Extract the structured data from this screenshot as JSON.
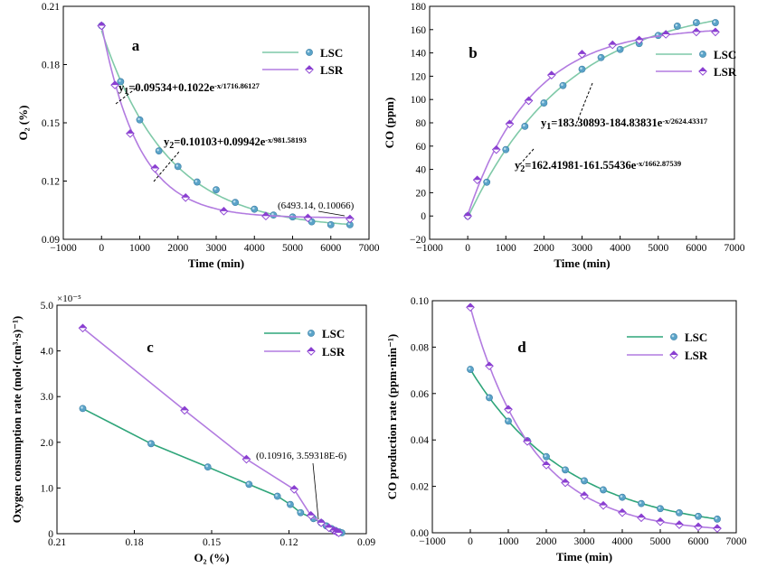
{
  "colors": {
    "lsc_line": "#7fc9a8",
    "lsr_line": "#b27be0",
    "lsc_marker": "#5aa3c8",
    "lsr_marker": "#8a3fd1",
    "lsc_line_c": "#2fa57a"
  },
  "chart_data": [
    {
      "id": "a",
      "type": "line",
      "panel_label": "a",
      "xlabel": "Time (min)",
      "ylabel": "O₂ (%)",
      "xlim": [
        -1000,
        7000
      ],
      "ylim": [
        0.09,
        0.21
      ],
      "xticks": [
        -1000,
        0,
        1000,
        2000,
        3000,
        4000,
        5000,
        6000,
        7000
      ],
      "xtick_labels": [
        "−1000",
        "0",
        "1000",
        "2000",
        "3000",
        "4000",
        "5000",
        "6000",
        "7000"
      ],
      "yticks": [
        0.09,
        0.12,
        0.15,
        0.18,
        0.21
      ],
      "ytick_labels": [
        "0.09",
        "0.12",
        "0.15",
        "0.18",
        "0.21"
      ],
      "series": [
        {
          "name": "LSC",
          "fit": {
            "a": 0.09534,
            "b": 0.1022,
            "t": 1716.86127,
            "sign": 1
          },
          "x": [
            0,
            500,
            1000,
            1500,
            2000,
            2500,
            3000,
            3500,
            4000,
            4500,
            5000,
            5500,
            6000,
            6500
          ],
          "y": [
            0.2,
            0.1712,
            0.1515,
            0.1355,
            0.1275,
            0.1195,
            0.1155,
            0.109,
            0.1055,
            0.1025,
            0.1015,
            0.099,
            0.0975,
            0.0975
          ]
        },
        {
          "name": "LSR",
          "fit": {
            "a": 0.10103,
            "b": 0.09942,
            "t": 981.58193,
            "sign": 1
          },
          "x": [
            0,
            350,
            750,
            1400,
            2200,
            3200,
            4300,
            5400,
            6500
          ],
          "y": [
            0.2,
            0.1695,
            0.1445,
            0.1265,
            0.1115,
            0.1045,
            0.102,
            0.101,
            0.1005
          ]
        }
      ],
      "equations": [
        {
          "pre": "y",
          "sub": "1",
          "mid": "=0.09534+0.1022e",
          "sup": "-x/1716.86127"
        },
        {
          "pre": "y",
          "sub": "2",
          "mid": "=0.10103+0.09942e",
          "sup": "-x/981.58193"
        }
      ],
      "annotations": [
        "(6493.14, 0.10066)"
      ],
      "legend": [
        "LSC",
        "LSR"
      ],
      "legend_position": "top-right"
    },
    {
      "id": "b",
      "type": "line",
      "panel_label": "b",
      "xlabel": "Time (min)",
      "ylabel": "CO (ppm)",
      "xlim": [
        -1000,
        7000
      ],
      "ylim": [
        -20,
        180
      ],
      "xticks": [
        -1000,
        0,
        1000,
        2000,
        3000,
        4000,
        5000,
        6000,
        7000
      ],
      "xtick_labels": [
        "−1000",
        "0",
        "1000",
        "2000",
        "3000",
        "4000",
        "5000",
        "6000",
        "7000"
      ],
      "yticks": [
        -20,
        0,
        20,
        40,
        60,
        80,
        100,
        120,
        140,
        160,
        180
      ],
      "ytick_labels": [
        "−20",
        "0",
        "20",
        "40",
        "60",
        "80",
        "100",
        "120",
        "140",
        "160",
        "180"
      ],
      "series": [
        {
          "name": "LSC",
          "fit": {
            "a": 183.30893,
            "b": 184.83831,
            "t": 2624.43317,
            "sign": -1
          },
          "x": [
            0,
            500,
            1000,
            1500,
            2000,
            2500,
            3000,
            3500,
            4000,
            4500,
            5000,
            5500,
            6000,
            6500
          ],
          "y": [
            0,
            29,
            57,
            77,
            97,
            112,
            126,
            136,
            143,
            148,
            155,
            163,
            166,
            166
          ]
        },
        {
          "name": "LSR",
          "fit": {
            "a": 162.41981,
            "b": 161.55436,
            "t": 1662.87539,
            "sign": -1
          },
          "x": [
            0,
            250,
            750,
            1100,
            1600,
            2200,
            3000,
            3800,
            4500,
            5200,
            6000,
            6500
          ],
          "y": [
            0,
            31,
            57,
            79,
            99,
            121,
            139,
            147,
            151,
            156,
            158,
            158
          ]
        }
      ],
      "equations": [
        {
          "pre": "y",
          "sub": "1",
          "mid": "=183.30893-184.83831e",
          "sup": "-x/2624.43317"
        },
        {
          "pre": "y",
          "sub": "2",
          "mid": "=162.41981-161.55436e",
          "sup": "-x/1662.87539"
        }
      ],
      "legend": [
        "LSC",
        "LSR"
      ],
      "legend_position": "right"
    },
    {
      "id": "c",
      "type": "line",
      "panel_label": "c",
      "xlabel": "O₂ (%)",
      "ylabel": "Oxygen consumption rate (mol·(cm³·s)⁻¹)",
      "x_reversed": true,
      "xlim": [
        0.21,
        0.09
      ],
      "ylim": [
        0,
        5.0
      ],
      "y_multiplier": "×10⁻⁵",
      "xticks": [
        0.21,
        0.18,
        0.15,
        0.12,
        0.09
      ],
      "xtick_labels": [
        "0.21",
        "0.18",
        "0.15",
        "0.12",
        "0.09"
      ],
      "yticks": [
        0,
        1.0,
        2.0,
        3.0,
        4.0,
        5.0
      ],
      "ytick_labels": [
        "0",
        "1.0",
        "2.0",
        "3.0",
        "4.0",
        "5.0"
      ],
      "series": [
        {
          "name": "LSC",
          "x": [
            0.2,
            0.1735,
            0.1515,
            0.1355,
            0.1245,
            0.1195,
            0.1155,
            0.1105,
            0.1075,
            0.1055,
            0.1035,
            0.102,
            0.1005,
            0.0995
          ],
          "y": [
            2.74,
            1.97,
            1.46,
            1.08,
            0.82,
            0.64,
            0.46,
            0.33,
            0.24,
            0.17,
            0.11,
            0.07,
            0.04,
            0.02
          ]
        },
        {
          "name": "LSR",
          "x": [
            0.2,
            0.1605,
            0.1365,
            0.118,
            0.1115,
            0.1075,
            0.1045,
            0.1025,
            0.1015,
            0.1007
          ],
          "y": [
            4.5,
            2.7,
            1.63,
            0.97,
            0.4,
            0.24,
            0.13,
            0.07,
            0.04,
            0.02
          ]
        }
      ],
      "annotations": [
        "(0.10916, 3.59318E-6)"
      ],
      "legend": [
        "LSC",
        "LSR"
      ],
      "legend_position": "top-right"
    },
    {
      "id": "d",
      "type": "line",
      "panel_label": "d",
      "xlabel": "Time (min)",
      "ylabel": "CO production rate (ppm·min⁻¹)",
      "xlim": [
        -1000,
        7000
      ],
      "ylim": [
        0,
        0.1
      ],
      "xticks": [
        -1000,
        0,
        1000,
        2000,
        3000,
        4000,
        5000,
        6000,
        7000
      ],
      "xtick_labels": [
        "−1000",
        "0",
        "1000",
        "2000",
        "3000",
        "4000",
        "5000",
        "6000",
        "7000"
      ],
      "yticks": [
        0,
        0.02,
        0.04,
        0.06,
        0.08,
        0.1
      ],
      "ytick_labels": [
        "0.00",
        "0.02",
        "0.04",
        "0.06",
        "0.08",
        "0.10"
      ],
      "series": [
        {
          "name": "LSC",
          "fit": {
            "a": 0,
            "b": 0.07043,
            "t": 2624.43317,
            "sign": 1
          },
          "x": [
            0,
            500,
            1000,
            1500,
            2000,
            2500,
            3000,
            3500,
            4000,
            4500,
            5000,
            5500,
            6000,
            6500
          ],
          "y": [
            0.0704,
            0.0582,
            0.0481,
            0.0397,
            0.0328,
            0.0271,
            0.0224,
            0.0185,
            0.0153,
            0.0126,
            0.0104,
            0.0086,
            0.0071,
            0.0059
          ]
        },
        {
          "name": "LSR",
          "fit": {
            "a": 0,
            "b": 0.09715,
            "t": 1662.87539,
            "sign": 1
          },
          "x": [
            0,
            500,
            1000,
            1500,
            2000,
            2500,
            3000,
            3500,
            4000,
            4500,
            5000,
            5500,
            6000,
            6500
          ],
          "y": [
            0.0972,
            0.0719,
            0.0532,
            0.0394,
            0.0292,
            0.0216,
            0.016,
            0.0118,
            0.0087,
            0.0065,
            0.0048,
            0.0035,
            0.0026,
            0.0019
          ]
        }
      ],
      "legend": [
        "LSC",
        "LSR"
      ],
      "legend_position": "top-right"
    }
  ]
}
